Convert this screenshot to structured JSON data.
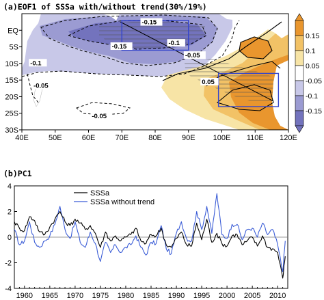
{
  "chart_data": [
    {
      "type": "heatmap",
      "title": "(a)EOF1 of SSSa with/without trend(30%/19%)",
      "xlabel": "",
      "ylabel": "",
      "xlim": [
        40,
        120
      ],
      "ylim": [
        -30,
        5
      ],
      "x_ticks": [
        "40E",
        "50E",
        "60E",
        "70E",
        "80E",
        "90E",
        "100E",
        "110E",
        "120E"
      ],
      "y_ticks": [
        "EQ",
        "5S",
        "10S",
        "15S",
        "20S",
        "25S",
        "30S"
      ],
      "colorbar_ticks": [
        "0.15",
        "0.1",
        "0.05",
        "-0.05",
        "-0.1",
        "-0.15"
      ],
      "colors": {
        "neg3": "#7373bd",
        "neg2": "#9b9bd2",
        "neg1": "#c8c8e8",
        "pos1": "#f7e4a6",
        "pos2": "#f2c266",
        "pos3": "#e9962e",
        "land": "#ffffff",
        "box": "#3344cc"
      },
      "contour_labels": [
        {
          "text": "-0.15",
          "lon": 76,
          "lat": 1.8
        },
        {
          "text": "-0.1",
          "lon": 84,
          "lat": -4.5
        },
        {
          "text": "-0.15",
          "lon": 67,
          "lat": -5.5
        },
        {
          "text": "-0.05",
          "lon": 89,
          "lat": -8.2
        },
        {
          "text": "-0.1",
          "lon": 42.5,
          "lat": -10.5
        },
        {
          "text": "-0.05",
          "lon": 43.5,
          "lat": -17.3
        },
        {
          "text": "0.05",
          "lon": 94,
          "lat": -16.2
        },
        {
          "text": "-0.05",
          "lon": 61,
          "lat": -26.5
        }
      ],
      "boxes": [
        {
          "lon": [
            70,
            90
          ],
          "lat": [
            -6,
            3
          ]
        },
        {
          "lon": [
            99,
            117
          ],
          "lat": [
            -23,
            -13
          ]
        }
      ]
    },
    {
      "type": "line",
      "title": "(b)PC1",
      "xlabel": "",
      "ylabel": "",
      "xlim": [
        1958,
        2012
      ],
      "ylim": [
        -4,
        4
      ],
      "x_ticks": [
        1960,
        1965,
        1970,
        1975,
        1980,
        1985,
        1990,
        1995,
        2000,
        2005,
        2010
      ],
      "y_ticks": [
        4,
        2,
        0,
        -2,
        -4
      ],
      "legend": "top-left",
      "series": [
        {
          "name": "SSSa",
          "color": "#000000",
          "x": [
            1958,
            1959,
            1960,
            1961,
            1962,
            1963,
            1964,
            1965,
            1966,
            1967,
            1968,
            1969,
            1970,
            1971,
            1972,
            1973,
            1974,
            1975,
            1976,
            1977,
            1978,
            1979,
            1980,
            1981,
            1982,
            1983,
            1984,
            1985,
            1986,
            1987,
            1988,
            1989,
            1990,
            1991,
            1992,
            1993,
            1994,
            1995,
            1996,
            1997,
            1998,
            1999,
            2000,
            2001,
            2002,
            2003,
            2004,
            2005,
            2006,
            2007,
            2008,
            2009,
            2010,
            2011,
            2011.5
          ],
          "y": [
            1.2,
            0.7,
            0.5,
            1.6,
            1.3,
            0.4,
            0.2,
            0.8,
            1.4,
            2.0,
            1.2,
            0.9,
            1.4,
            1.1,
            0.6,
            0.9,
            0.3,
            -0.8,
            0.4,
            -0.3,
            0.1,
            -0.3,
            0.0,
            0.2,
            0.7,
            -0.3,
            -0.5,
            0.2,
            0.1,
            0.7,
            -0.6,
            -0.8,
            -0.1,
            0.4,
            -0.6,
            -0.7,
            1.1,
            -0.2,
            1.4,
            -0.4,
            0.3,
            -0.5,
            -0.7,
            0.1,
            0.2,
            -0.6,
            -0.3,
            0.0,
            -0.7,
            0.1,
            -0.8,
            -0.9,
            -1.2,
            -3.2,
            -1.5
          ]
        },
        {
          "name": "SSSa without trend",
          "color": "#3a5cd6",
          "x": [
            1958,
            1959,
            1960,
            1961,
            1962,
            1963,
            1964,
            1965,
            1966,
            1967,
            1968,
            1969,
            1970,
            1971,
            1972,
            1973,
            1974,
            1975,
            1976,
            1977,
            1978,
            1979,
            1980,
            1981,
            1982,
            1983,
            1984,
            1985,
            1986,
            1987,
            1988,
            1989,
            1990,
            1991,
            1992,
            1993,
            1994,
            1995,
            1996,
            1997,
            1998,
            1999,
            2000,
            2001,
            2002,
            2003,
            2004,
            2005,
            2006,
            2007,
            2008,
            2009,
            2010,
            2011,
            2011.5
          ],
          "y": [
            0.6,
            -0.6,
            -0.3,
            1.2,
            -0.4,
            -0.8,
            -0.3,
            0.1,
            1.0,
            2.4,
            0.6,
            -0.1,
            1.2,
            -0.4,
            -0.8,
            0.4,
            -0.5,
            -1.9,
            -0.4,
            -1.2,
            -0.6,
            -1.2,
            -0.8,
            -0.6,
            0.1,
            -0.8,
            -1.4,
            -0.4,
            -0.5,
            0.9,
            -0.9,
            -1.3,
            0.3,
            1.2,
            -0.1,
            -0.3,
            2.0,
            0.6,
            2.4,
            0.3,
            3.4,
            0.2,
            -0.1,
            1.0,
            1.0,
            -0.2,
            0.6,
            0.7,
            0.0,
            1.1,
            0.2,
            0.6,
            -0.6,
            -2.7,
            -0.3
          ]
        }
      ]
    }
  ]
}
